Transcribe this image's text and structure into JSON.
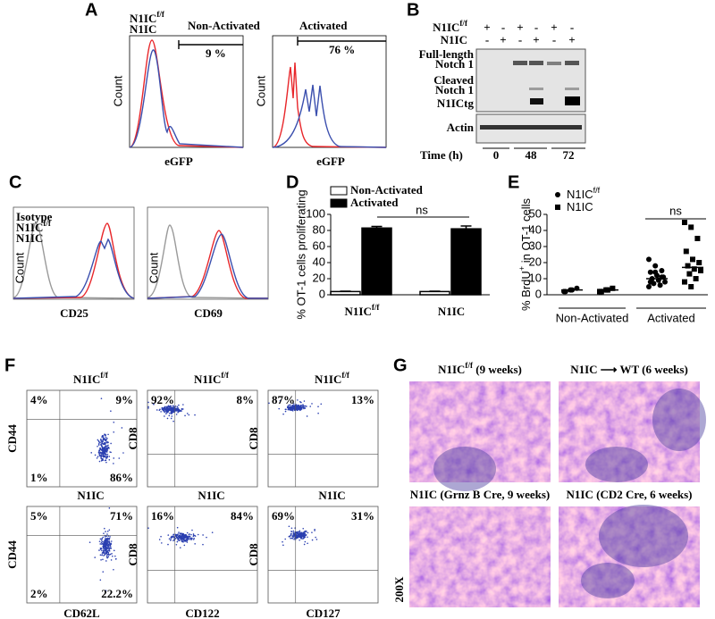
{
  "panel_a": {
    "label": "A",
    "legend": [
      {
        "name": "N1IC",
        "sup": "f/f",
        "color": "#e8262a"
      },
      {
        "name": "N1IC",
        "color": "#3b4fae"
      }
    ],
    "plots": [
      {
        "title": "Non-Activated",
        "gate": "9 %",
        "xlabel": "eGFP",
        "ylabel": "Count"
      },
      {
        "title": "Activated",
        "gate": "76 %",
        "xlabel": "eGFP",
        "ylabel": "Count"
      }
    ]
  },
  "panel_b": {
    "label": "B",
    "rows": [
      {
        "name": "N1IC",
        "sup": "f/f",
        "signs": [
          "+",
          "-",
          "+",
          "-",
          "+",
          "-"
        ]
      },
      {
        "name": "N1IC",
        "signs": [
          "-",
          "+",
          "-",
          "+",
          "-",
          "+"
        ]
      }
    ],
    "bands": [
      "Full-length",
      "Notch 1",
      "Cleaved",
      "Notch 1",
      "N1ICtg",
      "Actin"
    ],
    "time_label": "Time (h)",
    "times": [
      0,
      48,
      72
    ]
  },
  "panel_c": {
    "label": "C",
    "legend": [
      {
        "name": "Isotype",
        "color": "#9a9a9a"
      },
      {
        "name": "N1IC",
        "sup": "f/f",
        "color": "#e8262a"
      },
      {
        "name": "N1IC",
        "color": "#3b4fae"
      }
    ],
    "plots": [
      {
        "xlabel": "CD25",
        "ylabel": "Count"
      },
      {
        "xlabel": "CD69",
        "ylabel": "Count"
      }
    ]
  },
  "panel_d": {
    "type": "bar",
    "label": "D",
    "ylabel": "% OT-1 cells proliferating",
    "categories": [
      {
        "name": "N1IC",
        "sup": "f/f"
      },
      {
        "name": "N1IC"
      }
    ],
    "series": [
      {
        "name": "Non-Activated",
        "color": "#ffffff",
        "values": [
          4,
          4
        ],
        "errors": [
          0.5,
          0.5
        ]
      },
      {
        "name": "Activated",
        "color": "#000000",
        "values": [
          83,
          82
        ],
        "errors": [
          2,
          3.5
        ]
      }
    ],
    "ylim": [
      0,
      100
    ],
    "yticks": [
      0,
      20,
      40,
      60,
      80,
      100
    ],
    "annotation": "ns"
  },
  "panel_e": {
    "type": "scatter",
    "label": "E",
    "ylabel": {
      "name": "% BrdU",
      "sup": "+",
      "rest": " in OT-1 cells"
    },
    "groups": [
      "Non-Activated",
      "Activated"
    ],
    "series": [
      {
        "name": "N1IC",
        "sup": "f/f",
        "marker": "circle",
        "values": [
          [
            2,
            3,
            4,
            2,
            3
          ],
          [
            22,
            18,
            15,
            14,
            12,
            11,
            10,
            9,
            8,
            7,
            6,
            5,
            14,
            11,
            8
          ]
        ],
        "medians": [
          3,
          10
        ]
      },
      {
        "name": "N1IC",
        "marker": "square",
        "values": [
          [
            2,
            3,
            4,
            2,
            3
          ],
          [
            45,
            42,
            35,
            27,
            22,
            20,
            18,
            16,
            15,
            13,
            10,
            8,
            5
          ]
        ],
        "medians": [
          3,
          17
        ]
      }
    ],
    "ylim": [
      0,
      50
    ],
    "yticks": [
      0,
      10,
      20,
      30,
      40,
      50
    ],
    "annotation": "ns"
  },
  "panel_f": {
    "label": "F",
    "plots": [
      {
        "title": {
          "name": "N1IC",
          "sup": "f/f"
        },
        "ylabel": "CD44",
        "quadrants": [
          "4%",
          "9%",
          "1%",
          "86%"
        ]
      },
      {
        "title": {
          "name": "N1IC",
          "sup": "f/f"
        },
        "ylabel": "CD8",
        "quadrants": [
          "92%",
          "8%"
        ]
      },
      {
        "title": {
          "name": "N1IC",
          "sup": "f/f"
        },
        "ylabel": "CD8",
        "quadrants": [
          "87%",
          "13%"
        ]
      },
      {
        "title": {
          "name": "N1IC"
        },
        "ylabel": "CD44",
        "xlabel": "CD62L",
        "quadrants": [
          "5%",
          "71%",
          "2%",
          "22.2%"
        ]
      },
      {
        "title": {
          "name": "N1IC"
        },
        "ylabel": "CD8",
        "xlabel": "CD122",
        "quadrants": [
          "16%",
          "84%"
        ]
      },
      {
        "title": {
          "name": "N1IC"
        },
        "ylabel": "CD8",
        "xlabel": "CD127",
        "quadrants": [
          "69%",
          "31%"
        ]
      }
    ]
  },
  "panel_g": {
    "label": "G",
    "images": [
      {
        "name": "N1IC",
        "sup": "f/f",
        "rest": " (9 weeks)"
      },
      {
        "name": "N1IC ⟶ WT (6 weeks)"
      },
      {
        "name": "N1IC (Grnz B Cre, 9 weeks)"
      },
      {
        "name": "N1IC (CD2 Cre, 6 weeks)"
      }
    ],
    "magnification": "200X"
  }
}
